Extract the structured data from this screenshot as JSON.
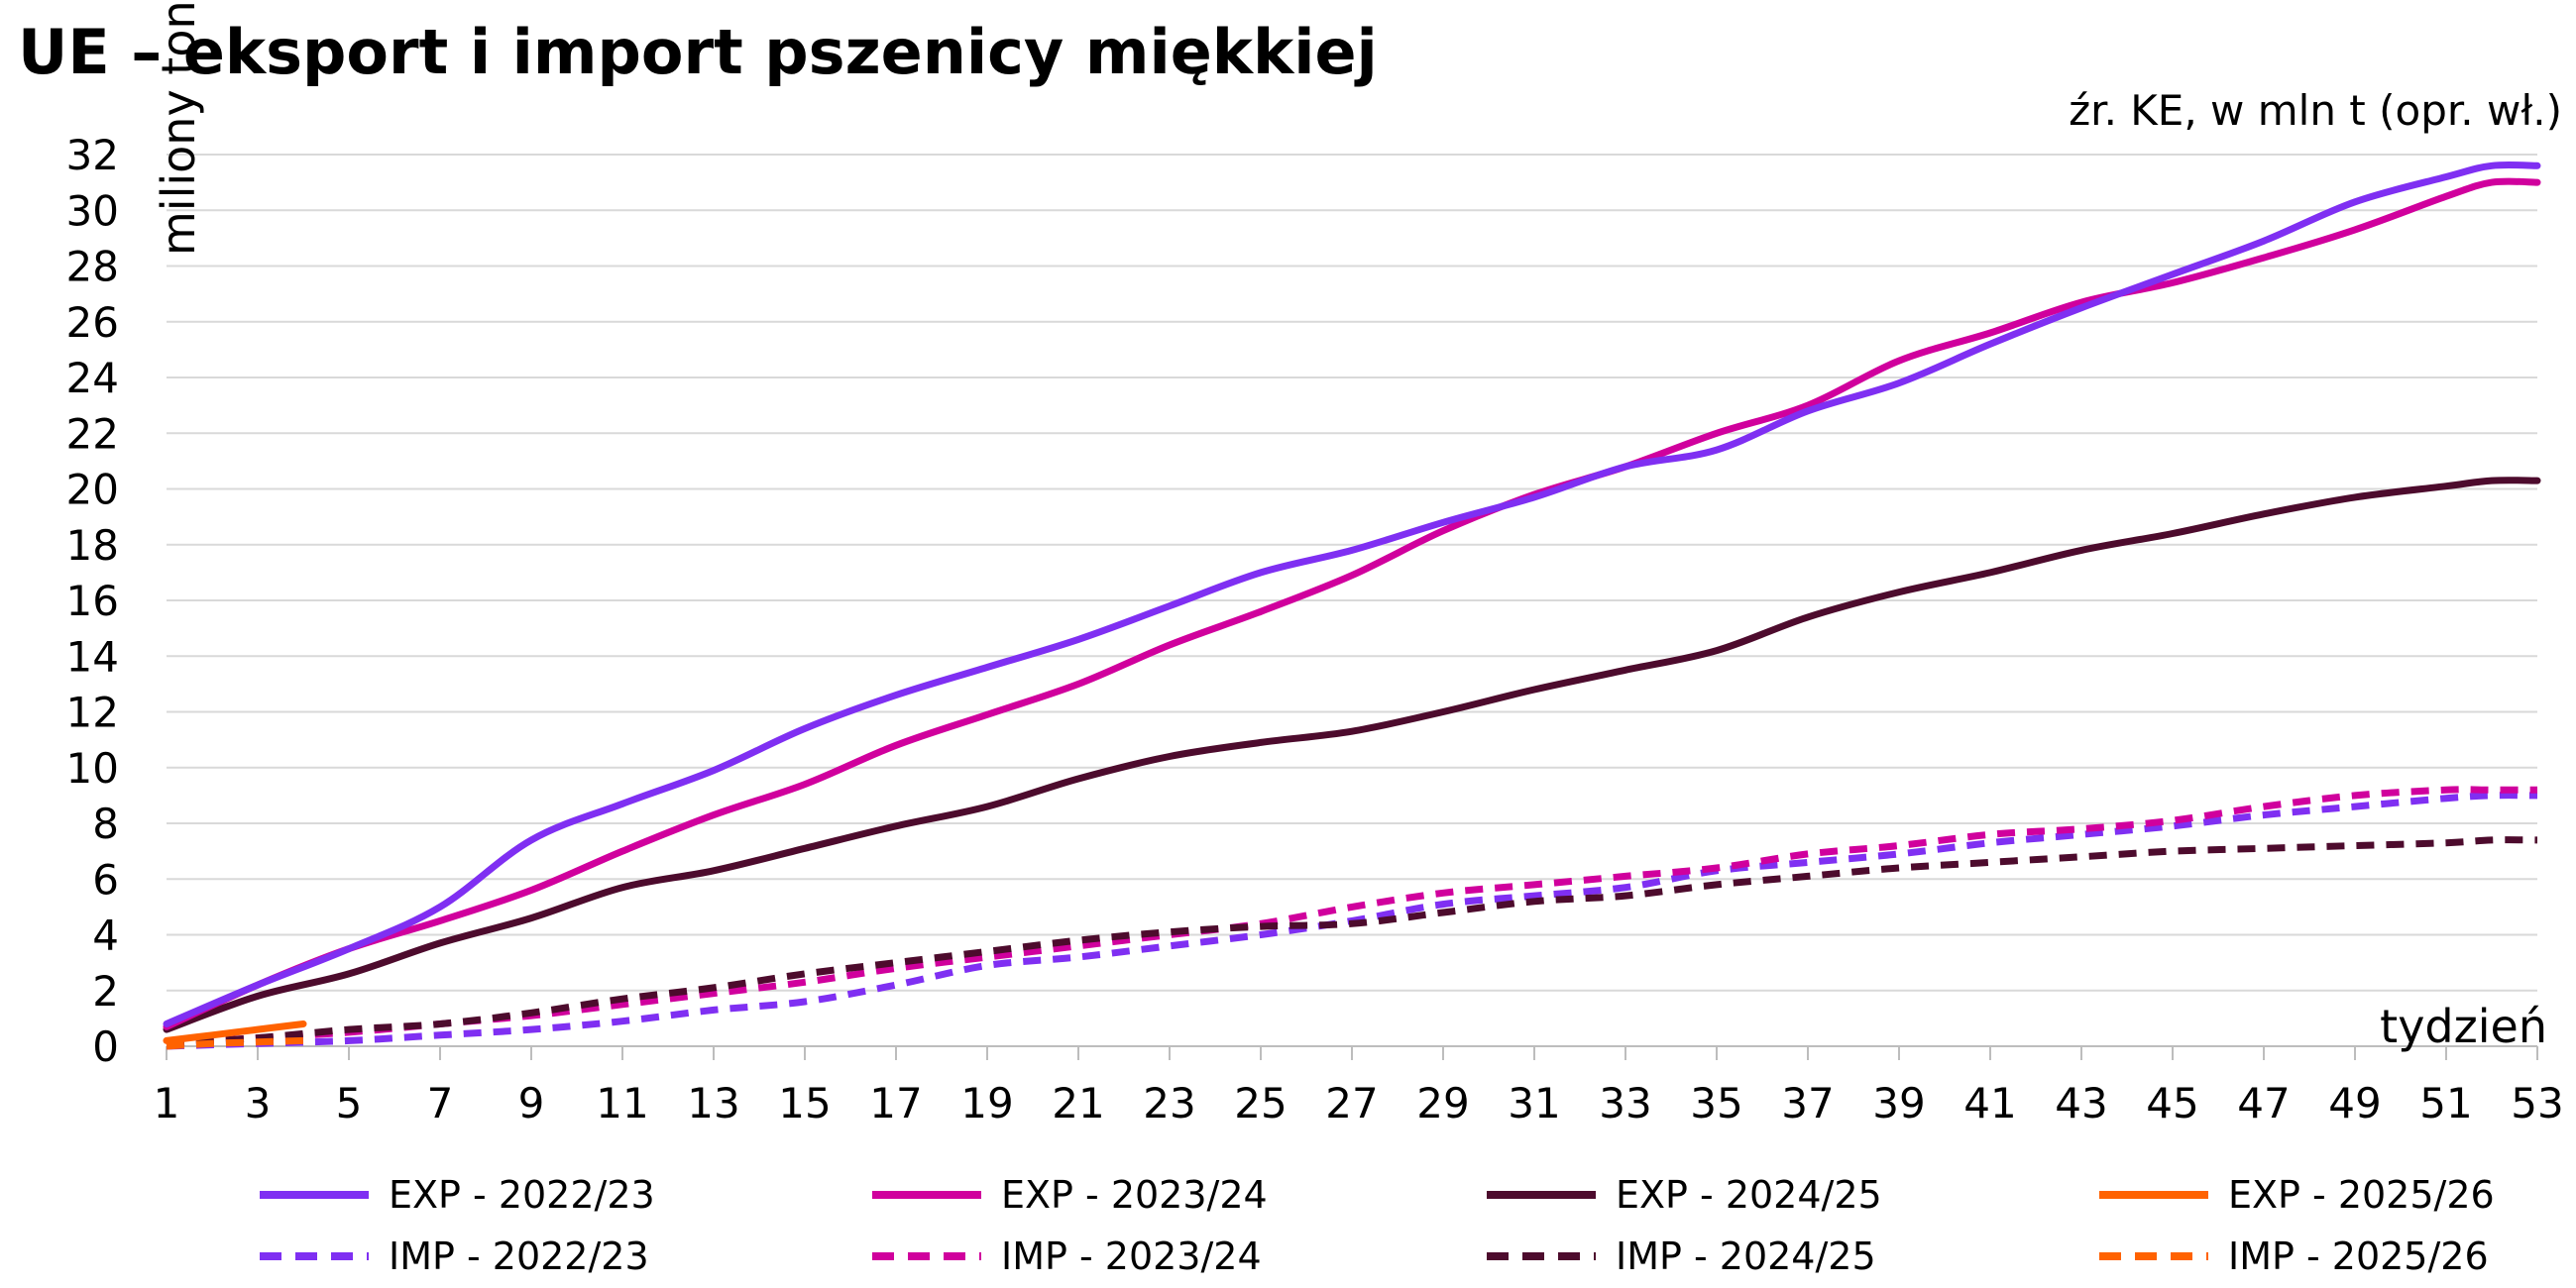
{
  "chart_data": {
    "type": "line",
    "title": "UE – eksport i import pszenicy miękkiej",
    "source": "źr. KE, w mln t (opr. wł.)",
    "ylabel": "miliony ton",
    "xlabel": "tydzień",
    "ylim": [
      0,
      32
    ],
    "yticks": [
      0,
      2,
      4,
      6,
      8,
      10,
      12,
      14,
      16,
      18,
      20,
      22,
      24,
      26,
      28,
      30,
      32
    ],
    "xlim": [
      1,
      53
    ],
    "xticks": [
      1,
      3,
      5,
      7,
      9,
      11,
      13,
      15,
      17,
      19,
      21,
      23,
      25,
      27,
      29,
      31,
      33,
      35,
      37,
      39,
      41,
      43,
      45,
      47,
      49,
      51,
      53
    ],
    "grid": true,
    "legend_position": "bottom",
    "series": [
      {
        "name": "EXP - 2022/23",
        "color": "#7f2ff2",
        "dash": "solid",
        "x": [
          1,
          3,
          5,
          7,
          9,
          11,
          13,
          15,
          17,
          19,
          21,
          23,
          25,
          27,
          29,
          31,
          33,
          35,
          37,
          39,
          41,
          43,
          45,
          47,
          49,
          51,
          52,
          53
        ],
        "y": [
          0.8,
          2.2,
          3.5,
          5.0,
          7.4,
          8.7,
          9.9,
          11.4,
          12.6,
          13.6,
          14.6,
          15.8,
          17.0,
          17.8,
          18.8,
          19.7,
          20.8,
          21.4,
          22.8,
          23.8,
          25.2,
          26.5,
          27.7,
          28.9,
          30.3,
          31.2,
          31.6,
          31.6
        ]
      },
      {
        "name": "EXP - 2023/24",
        "color": "#d0009d",
        "dash": "solid",
        "x": [
          1,
          3,
          5,
          7,
          9,
          11,
          13,
          15,
          17,
          19,
          21,
          23,
          25,
          27,
          29,
          31,
          33,
          35,
          37,
          39,
          41,
          43,
          45,
          47,
          49,
          51,
          52,
          53
        ],
        "y": [
          0.7,
          2.2,
          3.5,
          4.5,
          5.6,
          7.0,
          8.3,
          9.4,
          10.8,
          11.9,
          13.0,
          14.4,
          15.6,
          16.9,
          18.5,
          19.8,
          20.8,
          22.0,
          23.0,
          24.6,
          25.6,
          26.7,
          27.4,
          28.3,
          29.3,
          30.5,
          31.0,
          31.0
        ]
      },
      {
        "name": "EXP - 2024/25",
        "color": "#4d0b2d",
        "dash": "solid",
        "x": [
          1,
          3,
          5,
          7,
          9,
          11,
          13,
          15,
          17,
          19,
          21,
          23,
          25,
          27,
          29,
          31,
          33,
          35,
          37,
          39,
          41,
          43,
          45,
          47,
          49,
          51,
          52,
          53
        ],
        "y": [
          0.6,
          1.8,
          2.6,
          3.7,
          4.6,
          5.7,
          6.3,
          7.1,
          7.9,
          8.6,
          9.6,
          10.4,
          10.9,
          11.3,
          12.0,
          12.8,
          13.5,
          14.2,
          15.4,
          16.3,
          17.0,
          17.8,
          18.4,
          19.1,
          19.7,
          20.1,
          20.3,
          20.3
        ]
      },
      {
        "name": "EXP - 2025/26",
        "color": "#ff6200",
        "dash": "solid",
        "x": [
          1,
          2,
          3,
          4
        ],
        "y": [
          0.2,
          0.4,
          0.6,
          0.8
        ]
      },
      {
        "name": "IMP - 2022/23",
        "color": "#7f2ff2",
        "dash": "dashed",
        "x": [
          1,
          3,
          5,
          7,
          9,
          11,
          13,
          15,
          17,
          19,
          21,
          23,
          25,
          27,
          29,
          31,
          33,
          35,
          37,
          39,
          41,
          43,
          45,
          47,
          49,
          51,
          52,
          53
        ],
        "y": [
          0.0,
          0.1,
          0.2,
          0.4,
          0.6,
          0.9,
          1.3,
          1.6,
          2.2,
          2.9,
          3.2,
          3.6,
          4.0,
          4.5,
          5.1,
          5.4,
          5.7,
          6.3,
          6.6,
          6.9,
          7.3,
          7.6,
          7.9,
          8.3,
          8.6,
          8.9,
          9.0,
          9.0
        ]
      },
      {
        "name": "IMP - 2023/24",
        "color": "#d0009d",
        "dash": "dashed",
        "x": [
          1,
          3,
          5,
          7,
          9,
          11,
          13,
          15,
          17,
          19,
          21,
          23,
          25,
          27,
          29,
          31,
          33,
          35,
          37,
          39,
          41,
          43,
          45,
          47,
          49,
          51,
          52,
          53
        ],
        "y": [
          0.1,
          0.3,
          0.5,
          0.8,
          1.1,
          1.5,
          1.9,
          2.3,
          2.8,
          3.2,
          3.6,
          4.0,
          4.4,
          5.0,
          5.5,
          5.8,
          6.1,
          6.4,
          6.9,
          7.2,
          7.6,
          7.8,
          8.1,
          8.6,
          9.0,
          9.2,
          9.2,
          9.2
        ]
      },
      {
        "name": "IMP - 2024/25",
        "color": "#4d0b2d",
        "dash": "dashed",
        "x": [
          1,
          3,
          5,
          7,
          9,
          11,
          13,
          15,
          17,
          19,
          21,
          23,
          25,
          27,
          29,
          31,
          33,
          35,
          37,
          39,
          41,
          43,
          45,
          47,
          49,
          51,
          52,
          53
        ],
        "y": [
          0.1,
          0.3,
          0.6,
          0.8,
          1.2,
          1.7,
          2.1,
          2.6,
          3.0,
          3.4,
          3.8,
          4.1,
          4.3,
          4.4,
          4.8,
          5.2,
          5.4,
          5.8,
          6.1,
          6.4,
          6.6,
          6.8,
          7.0,
          7.1,
          7.2,
          7.3,
          7.4,
          7.4
        ]
      },
      {
        "name": "IMP - 2025/26",
        "color": "#ff6200",
        "dash": "dashed",
        "x": [
          1,
          2,
          3,
          4
        ],
        "y": [
          0.0,
          0.1,
          0.15,
          0.2
        ]
      }
    ]
  }
}
